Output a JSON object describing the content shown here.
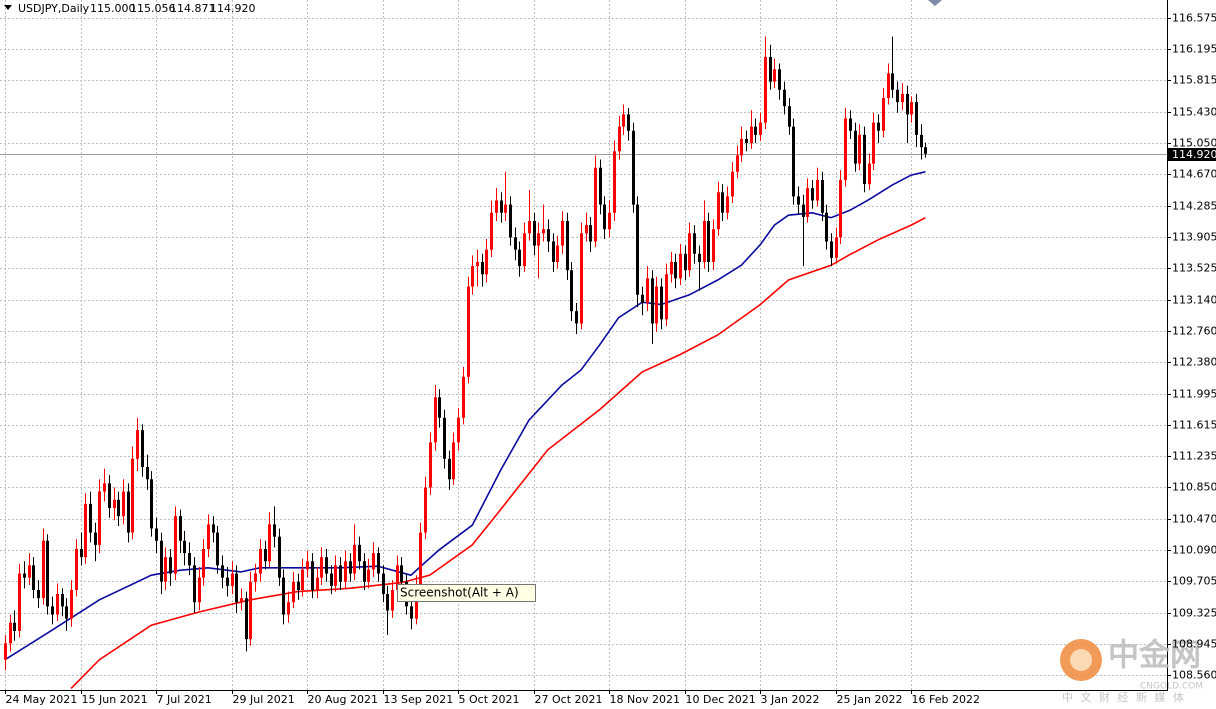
{
  "chart_data": {
    "type": "candlestick",
    "header": "USDJPY,Daily",
    "last_ohlc_labels": [
      "115.000",
      "115.056",
      "114.871",
      "114.920"
    ],
    "current_price": {
      "value": 114.92,
      "label": "114.920"
    },
    "tooltip": "Screenshot(Alt + A)",
    "watermark": {
      "title": "中金网",
      "site": "CNGOLD.COM",
      "tagline": "中 文 财 经 新 媒 体"
    },
    "up_color": "#ff0000",
    "down_color": "#000000",
    "grid": true,
    "ylim": [
      108.38,
      116.795
    ],
    "yticks": [
      116.575,
      116.195,
      115.815,
      {
        "value": 115.43,
        "label": "115.430"
      },
      {
        "value": 115.05,
        "label": "115.050"
      },
      {
        "value": 114.67,
        "label": "114.670"
      },
      114.285,
      113.905,
      113.525,
      {
        "value": 113.14,
        "label": "113.140"
      },
      {
        "value": 112.76,
        "label": "112.760"
      },
      {
        "value": 112.38,
        "label": "112.380"
      },
      111.995,
      111.615,
      111.235,
      {
        "value": 110.85,
        "label": "110.850"
      },
      {
        "value": 110.47,
        "label": "110.470"
      },
      {
        "value": 110.09,
        "label": "110.090"
      },
      109.705,
      109.325,
      108.945,
      {
        "value": 108.56,
        "label": "108.560"
      }
    ],
    "xlim": [
      -1,
      246
    ],
    "xticks": [
      {
        "value": 0,
        "label": "24 May 2021"
      },
      {
        "value": 16,
        "label": "15 Jun 2021"
      },
      {
        "value": 32,
        "label": "7 Jul 2021"
      },
      {
        "value": 48,
        "label": "29 Jul 2021"
      },
      {
        "value": 64,
        "label": "20 Aug 2021"
      },
      {
        "value": 80,
        "label": "13 Sep 2021"
      },
      {
        "value": 96,
        "label": "5 Oct 2021"
      },
      {
        "value": 112,
        "label": "27 Oct 2021"
      },
      {
        "value": 128,
        "label": "18 Nov 2021"
      },
      {
        "value": 144,
        "label": "10 Dec 2021"
      },
      {
        "value": 160,
        "label": "3 Jan 2022"
      },
      {
        "value": 176,
        "label": "25 Jan 2022"
      },
      {
        "value": 192,
        "label": "16 Feb 2022"
      }
    ],
    "candles": [
      [
        108.75,
        109.05,
        108.62,
        108.95
      ],
      [
        108.95,
        109.3,
        108.85,
        109.2
      ],
      [
        109.2,
        109.35,
        108.98,
        109.1
      ],
      [
        109.1,
        109.92,
        109.02,
        109.8
      ],
      [
        109.8,
        109.95,
        109.62,
        109.75
      ],
      [
        109.75,
        110.05,
        109.66,
        109.9
      ],
      [
        109.9,
        110.0,
        109.5,
        109.6
      ],
      [
        109.6,
        109.72,
        109.38,
        109.5
      ],
      [
        109.5,
        110.35,
        109.42,
        110.2
      ],
      [
        110.2,
        110.28,
        109.3,
        109.4
      ],
      [
        109.4,
        109.52,
        109.18,
        109.3
      ],
      [
        109.3,
        109.68,
        109.22,
        109.55
      ],
      [
        109.55,
        109.62,
        109.28,
        109.4
      ],
      [
        109.4,
        109.5,
        109.1,
        109.25
      ],
      [
        109.25,
        109.72,
        109.15,
        109.6
      ],
      [
        109.6,
        110.22,
        109.52,
        110.1
      ],
      [
        110.1,
        110.3,
        109.9,
        110.0
      ],
      [
        110.0,
        110.78,
        109.92,
        110.65
      ],
      [
        110.65,
        110.8,
        110.18,
        110.3
      ],
      [
        110.3,
        110.42,
        109.95,
        110.15
      ],
      [
        110.15,
        110.95,
        110.05,
        110.8
      ],
      [
        110.8,
        111.08,
        110.68,
        110.9
      ],
      [
        110.9,
        111.0,
        110.48,
        110.6
      ],
      [
        110.6,
        110.85,
        110.45,
        110.7
      ],
      [
        110.7,
        110.8,
        110.38,
        110.5
      ],
      [
        110.5,
        110.95,
        110.4,
        110.8
      ],
      [
        110.8,
        110.9,
        110.18,
        110.3
      ],
      [
        110.3,
        111.35,
        110.22,
        111.2
      ],
      [
        111.2,
        111.7,
        111.05,
        111.55
      ],
      [
        111.55,
        111.62,
        110.98,
        111.1
      ],
      [
        111.1,
        111.25,
        110.82,
        110.95
      ],
      [
        110.95,
        111.05,
        110.25,
        110.35
      ],
      [
        110.35,
        110.48,
        110.05,
        110.2
      ],
      [
        110.2,
        110.3,
        109.55,
        109.7
      ],
      [
        109.7,
        110.12,
        109.6,
        110.0
      ],
      [
        110.0,
        110.1,
        109.65,
        109.8
      ],
      [
        109.8,
        110.62,
        109.72,
        110.5
      ],
      [
        110.5,
        110.58,
        110.05,
        110.2
      ],
      [
        110.2,
        110.32,
        109.9,
        110.05
      ],
      [
        110.05,
        110.18,
        109.78,
        109.9
      ],
      [
        109.9,
        110.0,
        109.32,
        109.45
      ],
      [
        109.45,
        109.88,
        109.35,
        109.75
      ],
      [
        109.75,
        110.22,
        109.65,
        110.1
      ],
      [
        110.1,
        110.52,
        110.0,
        110.4
      ],
      [
        110.4,
        110.5,
        110.18,
        110.3
      ],
      [
        110.3,
        110.38,
        109.8,
        109.9
      ],
      [
        109.9,
        110.02,
        109.62,
        109.75
      ],
      [
        109.75,
        109.88,
        109.52,
        109.65
      ],
      [
        109.65,
        109.95,
        109.55,
        109.8
      ],
      [
        109.8,
        109.9,
        109.32,
        109.45
      ],
      [
        109.45,
        109.62,
        109.35,
        109.5
      ],
      [
        109.5,
        109.58,
        108.85,
        109.0
      ],
      [
        109.0,
        109.82,
        108.92,
        109.7
      ],
      [
        109.7,
        109.92,
        109.58,
        109.8
      ],
      [
        109.8,
        110.22,
        109.7,
        110.1
      ],
      [
        110.1,
        110.2,
        109.85,
        109.95
      ],
      [
        109.95,
        110.55,
        109.88,
        110.4
      ],
      [
        110.4,
        110.62,
        110.12,
        110.25
      ],
      [
        110.25,
        110.35,
        109.65,
        109.75
      ],
      [
        109.75,
        109.85,
        109.18,
        109.3
      ],
      [
        109.3,
        109.58,
        109.2,
        109.45
      ],
      [
        109.45,
        109.82,
        109.38,
        109.7
      ],
      [
        109.7,
        109.8,
        109.48,
        109.6
      ],
      [
        109.6,
        109.98,
        109.52,
        109.85
      ],
      [
        109.85,
        110.08,
        109.75,
        109.95
      ],
      [
        109.95,
        110.05,
        109.5,
        109.6
      ],
      [
        109.6,
        109.88,
        109.5,
        109.75
      ],
      [
        109.75,
        110.12,
        109.66,
        110.0
      ],
      [
        110.0,
        110.1,
        109.7,
        109.8
      ],
      [
        109.8,
        109.9,
        109.55,
        109.65
      ],
      [
        109.65,
        110.02,
        109.58,
        109.9
      ],
      [
        109.9,
        110.0,
        109.6,
        109.7
      ],
      [
        109.7,
        110.08,
        109.62,
        109.95
      ],
      [
        109.95,
        110.05,
        109.7,
        109.8
      ],
      [
        109.8,
        110.4,
        109.72,
        110.15
      ],
      [
        110.15,
        110.25,
        109.85,
        109.95
      ],
      [
        109.95,
        110.05,
        109.6,
        109.7
      ],
      [
        109.7,
        109.98,
        109.62,
        109.85
      ],
      [
        109.85,
        110.18,
        109.76,
        110.05
      ],
      [
        110.05,
        110.12,
        109.7,
        109.8
      ],
      [
        109.8,
        109.9,
        109.45,
        109.55
      ],
      [
        109.55,
        109.65,
        109.05,
        109.35
      ],
      [
        109.35,
        109.72,
        109.26,
        109.6
      ],
      [
        109.6,
        110.02,
        109.5,
        109.9
      ],
      [
        109.9,
        110.0,
        109.6,
        109.7
      ],
      [
        109.7,
        109.8,
        109.3,
        109.4
      ],
      [
        109.4,
        109.5,
        109.12,
        109.25
      ],
      [
        109.25,
        109.78,
        109.18,
        109.65
      ],
      [
        109.65,
        110.42,
        109.58,
        110.3
      ],
      [
        110.3,
        110.98,
        110.22,
        110.85
      ],
      [
        110.85,
        111.52,
        110.76,
        111.4
      ],
      [
        111.4,
        112.1,
        111.3,
        111.95
      ],
      [
        111.95,
        112.05,
        111.58,
        111.7
      ],
      [
        111.7,
        111.8,
        111.08,
        111.2
      ],
      [
        111.2,
        111.3,
        110.82,
        110.95
      ],
      [
        110.95,
        111.52,
        110.88,
        111.4
      ],
      [
        111.4,
        111.82,
        111.3,
        111.7
      ],
      [
        111.7,
        112.32,
        111.62,
        112.2
      ],
      [
        112.2,
        113.42,
        112.12,
        113.3
      ],
      [
        113.3,
        113.68,
        113.2,
        113.55
      ],
      [
        113.55,
        113.75,
        113.3,
        113.6
      ],
      [
        113.6,
        113.7,
        113.3,
        113.45
      ],
      [
        113.45,
        113.88,
        113.35,
        113.75
      ],
      [
        113.75,
        114.35,
        113.66,
        114.2
      ],
      [
        114.2,
        114.5,
        114.1,
        114.35
      ],
      [
        114.35,
        114.45,
        114.08,
        114.2
      ],
      [
        114.2,
        114.7,
        114.1,
        114.3
      ],
      [
        114.3,
        114.4,
        113.8,
        113.9
      ],
      [
        113.9,
        114.02,
        113.62,
        113.75
      ],
      [
        113.75,
        113.85,
        113.42,
        113.55
      ],
      [
        113.55,
        114.08,
        113.48,
        113.95
      ],
      [
        113.95,
        114.48,
        113.86,
        114.1
      ],
      [
        114.1,
        114.2,
        113.68,
        113.8
      ],
      [
        113.8,
        114.08,
        113.4,
        113.95
      ],
      [
        113.95,
        114.3,
        113.85,
        114.0
      ],
      [
        114.0,
        114.12,
        113.72,
        113.85
      ],
      [
        113.85,
        113.95,
        113.48,
        113.6
      ],
      [
        113.6,
        113.92,
        113.52,
        113.8
      ],
      [
        113.8,
        114.22,
        113.7,
        114.1
      ],
      [
        114.1,
        114.2,
        113.38,
        113.5
      ],
      [
        113.5,
        113.6,
        112.88,
        113.0
      ],
      [
        113.0,
        113.1,
        112.72,
        112.85
      ],
      [
        112.85,
        114.08,
        112.78,
        113.95
      ],
      [
        113.95,
        114.2,
        113.85,
        114.05
      ],
      [
        114.05,
        114.15,
        113.72,
        113.85
      ],
      [
        113.85,
        114.9,
        113.78,
        114.75
      ],
      [
        114.75,
        114.85,
        114.18,
        114.3
      ],
      [
        114.3,
        114.4,
        113.88,
        114.0
      ],
      [
        114.0,
        114.35,
        113.9,
        114.2
      ],
      [
        114.2,
        115.08,
        114.1,
        114.95
      ],
      [
        114.95,
        115.38,
        114.85,
        115.25
      ],
      [
        115.25,
        115.52,
        115.15,
        115.4
      ],
      [
        115.4,
        115.48,
        115.08,
        115.2
      ],
      [
        115.2,
        115.3,
        114.2,
        114.3
      ],
      [
        114.3,
        114.4,
        113.05,
        113.2
      ],
      [
        113.2,
        113.3,
        112.95,
        113.1
      ],
      [
        113.1,
        113.55,
        113.0,
        113.4
      ],
      [
        113.4,
        113.5,
        112.6,
        112.85
      ],
      [
        112.85,
        113.42,
        112.75,
        113.3
      ],
      [
        113.3,
        113.4,
        112.78,
        112.9
      ],
      [
        112.9,
        113.58,
        112.82,
        113.45
      ],
      [
        113.45,
        113.72,
        113.35,
        113.6
      ],
      [
        113.6,
        113.7,
        113.28,
        113.4
      ],
      [
        113.4,
        113.82,
        113.32,
        113.7
      ],
      [
        113.7,
        113.8,
        113.38,
        113.5
      ],
      [
        113.5,
        114.08,
        113.42,
        113.95
      ],
      [
        113.95,
        114.05,
        113.58,
        113.7
      ],
      [
        113.7,
        113.8,
        113.25,
        113.6
      ],
      [
        113.6,
        114.35,
        113.52,
        114.1
      ],
      [
        114.1,
        114.2,
        113.48,
        113.6
      ],
      [
        113.6,
        114.12,
        113.5,
        114.0
      ],
      [
        114.0,
        114.58,
        113.92,
        114.45
      ],
      [
        114.45,
        114.55,
        114.1,
        114.2
      ],
      [
        114.2,
        114.52,
        114.12,
        114.4
      ],
      [
        114.4,
        114.82,
        114.32,
        114.7
      ],
      [
        114.7,
        115.02,
        114.62,
        114.9
      ],
      [
        114.9,
        115.25,
        114.82,
        115.1
      ],
      [
        115.1,
        115.2,
        114.95,
        115.05
      ],
      [
        115.05,
        115.45,
        114.98,
        115.25
      ],
      [
        115.25,
        115.35,
        115.05,
        115.15
      ],
      [
        115.15,
        115.42,
        115.08,
        115.3
      ],
      [
        115.3,
        116.35,
        115.22,
        116.1
      ],
      [
        116.1,
        116.25,
        115.7,
        115.8
      ],
      [
        115.8,
        116.08,
        115.72,
        115.95
      ],
      [
        115.95,
        116.02,
        115.58,
        115.7
      ],
      [
        115.7,
        115.8,
        115.4,
        115.5
      ],
      [
        115.5,
        115.6,
        115.15,
        115.25
      ],
      [
        115.25,
        115.35,
        114.3,
        114.4
      ],
      [
        114.4,
        114.52,
        114.18,
        114.3
      ],
      [
        114.3,
        114.42,
        113.55,
        114.15
      ],
      [
        114.15,
        114.62,
        114.08,
        114.5
      ],
      [
        114.5,
        114.6,
        114.25,
        114.35
      ],
      [
        114.35,
        114.75,
        114.28,
        114.6
      ],
      [
        114.6,
        114.7,
        114.1,
        114.2
      ],
      [
        114.2,
        114.3,
        113.75,
        113.85
      ],
      [
        113.85,
        113.95,
        113.55,
        113.65
      ],
      [
        113.65,
        114.02,
        113.58,
        113.9
      ],
      [
        113.9,
        114.72,
        113.82,
        114.6
      ],
      [
        114.6,
        115.48,
        114.52,
        115.35
      ],
      [
        115.35,
        115.45,
        115.1,
        115.2
      ],
      [
        115.2,
        115.3,
        114.7,
        114.8
      ],
      [
        114.8,
        115.28,
        114.72,
        115.15
      ],
      [
        115.15,
        115.25,
        114.45,
        114.55
      ],
      [
        114.55,
        114.92,
        114.48,
        114.8
      ],
      [
        114.8,
        115.42,
        114.72,
        115.3
      ],
      [
        115.3,
        115.4,
        115.05,
        115.2
      ],
      [
        115.2,
        115.72,
        115.12,
        115.6
      ],
      [
        115.6,
        116.02,
        115.52,
        115.9
      ],
      [
        115.9,
        116.35,
        115.6,
        115.7
      ],
      [
        115.7,
        115.8,
        115.42,
        115.55
      ],
      [
        115.55,
        115.78,
        115.45,
        115.65
      ],
      [
        115.65,
        115.75,
        115.05,
        115.4
      ],
      [
        115.4,
        115.62,
        115.3,
        115.55
      ],
      [
        115.55,
        115.65,
        115.0,
        115.15
      ],
      [
        115.15,
        115.28,
        114.85,
        115.0
      ],
      [
        115.0,
        115.056,
        114.871,
        114.92
      ]
    ],
    "lines": [
      {
        "color": "#0a0aa0",
        "x": [
          0,
          10,
          20,
          31,
          37,
          43,
          50,
          54,
          62,
          71,
          79,
          86,
          92,
          99,
          105,
          111,
          118,
          122,
          126,
          130,
          135,
          139,
          145,
          151,
          156,
          160,
          163,
          166,
          171,
          175,
          179,
          183,
          188,
          192,
          195
        ],
        "values": [
          108.75,
          109.11,
          109.48,
          109.78,
          109.84,
          109.87,
          109.82,
          109.87,
          109.87,
          109.87,
          109.89,
          109.78,
          110.09,
          110.39,
          111.06,
          111.67,
          112.1,
          112.28,
          112.59,
          112.92,
          113.11,
          113.08,
          113.2,
          113.38,
          113.56,
          113.81,
          114.05,
          114.17,
          114.2,
          114.14,
          114.23,
          114.36,
          114.54,
          114.66,
          114.7
        ]
      },
      {
        "color": "#ff0000",
        "x": [
          14,
          20,
          31,
          41,
          52,
          62,
          73,
          84,
          90,
          99,
          105,
          115,
          126,
          135,
          143,
          151,
          160,
          166,
          175,
          179,
          185,
          192,
          195
        ],
        "values": [
          108.4,
          108.75,
          109.17,
          109.33,
          109.48,
          109.58,
          109.62,
          109.69,
          109.78,
          110.15,
          110.58,
          111.31,
          111.8,
          112.26,
          112.47,
          112.71,
          113.08,
          113.38,
          113.56,
          113.69,
          113.87,
          114.05,
          114.14
        ]
      }
    ]
  }
}
